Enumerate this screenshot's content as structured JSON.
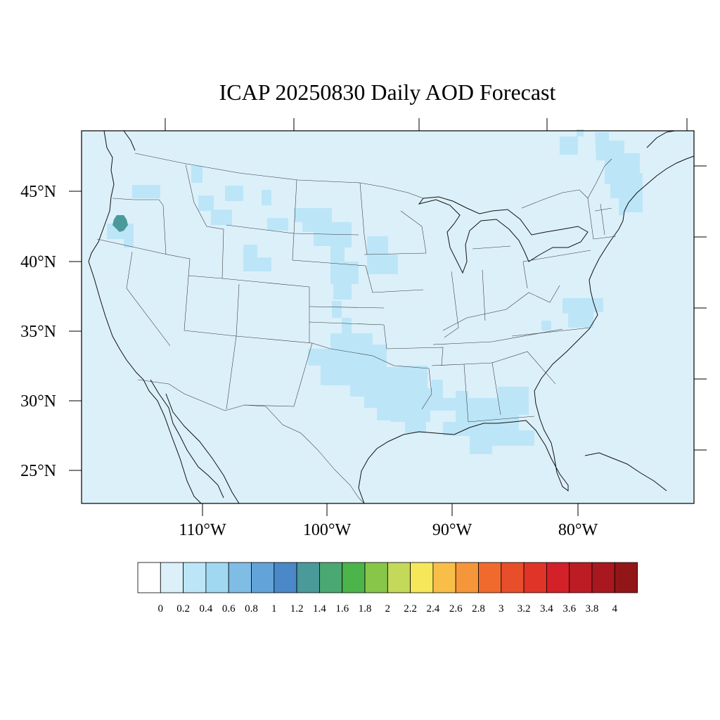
{
  "title": "ICAP 20250830 Daily AOD Forecast",
  "colors": {
    "background_field": "#dcf0fa",
    "aod_0_2_0_4": "#bce6f8",
    "aod_1_2_1_4": "#4a9a9a"
  },
  "map": {
    "lat_labels": [
      "45°N",
      "40°N",
      "35°N",
      "30°N",
      "25°N"
    ],
    "lon_labels": [
      "110°W",
      "100°W",
      "90°W",
      "80°W"
    ]
  },
  "colorbar": {
    "labels": [
      "0",
      "0.2",
      "0.4",
      "0.6",
      "0.8",
      "1",
      "1.2",
      "1.4",
      "1.6",
      "1.8",
      "2",
      "2.2",
      "2.4",
      "2.6",
      "2.8",
      "3",
      "3.2",
      "3.4",
      "3.6",
      "3.8",
      "4"
    ],
    "colors": [
      "#ffffff",
      "#dcf0fa",
      "#bce6f8",
      "#a0d8f2",
      "#80bde6",
      "#62a4da",
      "#4a88c8",
      "#4a9a9a",
      "#4aa872",
      "#4bb44a",
      "#88c64a",
      "#c4d85a",
      "#f6e65a",
      "#f8be48",
      "#f6963a",
      "#f06a2e",
      "#e84e2a",
      "#e03428",
      "#d42028",
      "#bc1c24",
      "#a8181e",
      "#921618"
    ]
  },
  "chart_data": {
    "type": "heatmap",
    "title": "ICAP 20250830 Daily AOD Forecast",
    "variable": "AOD",
    "domain": {
      "lat_range": [
        22.5,
        49.5
      ],
      "lon_range": [
        -119,
        -71
      ]
    },
    "levels": [
      0,
      0.2,
      0.4,
      0.6,
      0.8,
      1,
      1.2,
      1.4,
      1.6,
      1.8,
      2,
      2.2,
      2.4,
      2.6,
      2.8,
      3,
      3.2,
      3.4,
      3.6,
      3.8,
      4
    ],
    "background_range": [
      0,
      0.2
    ],
    "regions": [
      {
        "range": [
          0.2,
          0.4
        ]
      },
      {
        "range": [
          1.2,
          1.4
        ]
      }
    ]
  }
}
